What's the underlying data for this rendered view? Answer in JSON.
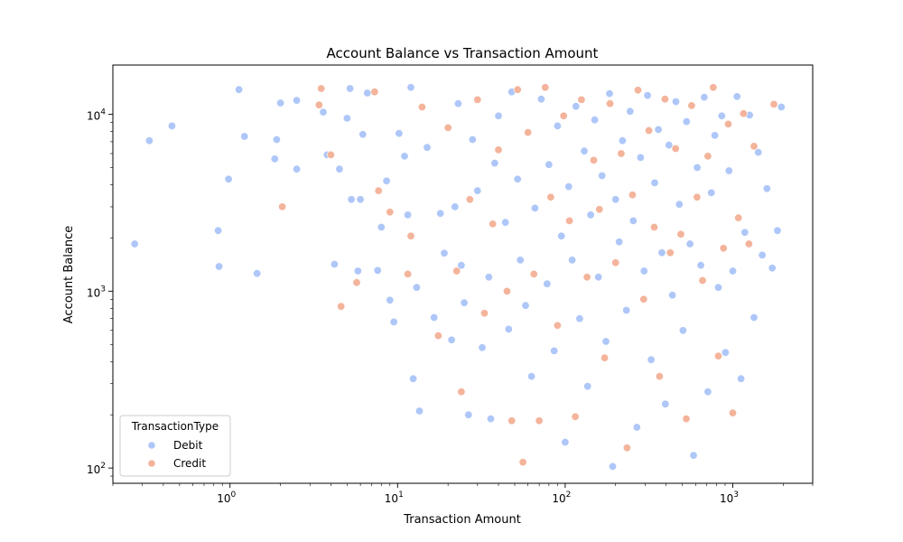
{
  "chart_data": {
    "type": "scatter",
    "title": "Account Balance vs Transaction Amount",
    "xlabel": "Transaction Amount",
    "ylabel": "Account Balance",
    "xscale": "log",
    "yscale": "log",
    "xlim": [
      0.2,
      3000
    ],
    "ylim": [
      82,
      19000
    ],
    "x_ticks": [
      {
        "value": 1,
        "base": "10",
        "exp": "0"
      },
      {
        "value": 10,
        "base": "10",
        "exp": "1"
      },
      {
        "value": 100,
        "base": "10",
        "exp": "2"
      },
      {
        "value": 1000,
        "base": "10",
        "exp": "3"
      }
    ],
    "y_ticks": [
      {
        "value": 100,
        "base": "10",
        "exp": "2"
      },
      {
        "value": 1000,
        "base": "10",
        "exp": "3"
      },
      {
        "value": 10000,
        "base": "10",
        "exp": "4"
      }
    ],
    "grid": false,
    "legend": {
      "title": "TransactionType",
      "placement": "lower-left"
    },
    "series": [
      {
        "name": "Debit",
        "color": "#aec7f8",
        "points": [
          [
            0.27,
            1850
          ],
          [
            0.33,
            7100
          ],
          [
            0.45,
            8600
          ],
          [
            0.85,
            2200
          ],
          [
            0.86,
            1380
          ],
          [
            0.98,
            4300
          ],
          [
            1.13,
            13800
          ],
          [
            1.22,
            7500
          ],
          [
            1.45,
            1260
          ],
          [
            1.85,
            5600
          ],
          [
            1.9,
            7200
          ],
          [
            2.0,
            11600
          ],
          [
            2.5,
            4900
          ],
          [
            2.5,
            12000
          ],
          [
            3.6,
            10300
          ],
          [
            3.8,
            5900
          ],
          [
            4.2,
            1420
          ],
          [
            4.5,
            4900
          ],
          [
            5.0,
            9500
          ],
          [
            5.2,
            14000
          ],
          [
            5.3,
            3300
          ],
          [
            5.8,
            1300
          ],
          [
            6.0,
            3300
          ],
          [
            6.2,
            7700
          ],
          [
            6.6,
            13200
          ],
          [
            7.6,
            1310
          ],
          [
            8.0,
            2300
          ],
          [
            8.6,
            4200
          ],
          [
            9.0,
            890
          ],
          [
            9.5,
            670
          ],
          [
            10.2,
            7800
          ],
          [
            11.0,
            5800
          ],
          [
            11.5,
            2700
          ],
          [
            12.0,
            14200
          ],
          [
            12.4,
            320
          ],
          [
            13.0,
            1050
          ],
          [
            13.5,
            210
          ],
          [
            15.0,
            6500
          ],
          [
            16.5,
            710
          ],
          [
            18.0,
            2750
          ],
          [
            19.0,
            1640
          ],
          [
            21.0,
            530
          ],
          [
            22.0,
            3000
          ],
          [
            23.0,
            11500
          ],
          [
            24.0,
            1400
          ],
          [
            25.0,
            860
          ],
          [
            26.5,
            200
          ],
          [
            28.0,
            7200
          ],
          [
            30.0,
            3700
          ],
          [
            32.0,
            480
          ],
          [
            35.0,
            1200
          ],
          [
            36.0,
            190
          ],
          [
            38.0,
            5300
          ],
          [
            40.0,
            9800
          ],
          [
            44.0,
            2450
          ],
          [
            46.0,
            610
          ],
          [
            48.0,
            13400
          ],
          [
            52.0,
            4300
          ],
          [
            54.0,
            1500
          ],
          [
            58.0,
            830
          ],
          [
            60.0,
            7900
          ],
          [
            63.0,
            330
          ],
          [
            66.0,
            2950
          ],
          [
            72.0,
            12200
          ],
          [
            78.0,
            1100
          ],
          [
            80.0,
            5200
          ],
          [
            86.0,
            460
          ],
          [
            90.0,
            8600
          ],
          [
            95.0,
            2050
          ],
          [
            100.0,
            140
          ],
          [
            105.0,
            3900
          ],
          [
            110.0,
            1500
          ],
          [
            116.0,
            11100
          ],
          [
            122.0,
            700
          ],
          [
            130.0,
            6200
          ],
          [
            136.0,
            290
          ],
          [
            142.0,
            2700
          ],
          [
            150.0,
            9300
          ],
          [
            158.0,
            1200
          ],
          [
            166.0,
            4500
          ],
          [
            175.0,
            520
          ],
          [
            184.0,
            13100
          ],
          [
            192.0,
            102
          ],
          [
            200.0,
            3300
          ],
          [
            210.0,
            1900
          ],
          [
            220.0,
            7100
          ],
          [
            232.0,
            780
          ],
          [
            244.0,
            10400
          ],
          [
            255.0,
            2500
          ],
          [
            268.0,
            170
          ],
          [
            282.0,
            5700
          ],
          [
            296.0,
            1300
          ],
          [
            310.0,
            12800
          ],
          [
            326.0,
            410
          ],
          [
            342.0,
            4100
          ],
          [
            360.0,
            8200
          ],
          [
            378.0,
            1650
          ],
          [
            396.0,
            230
          ],
          [
            416.0,
            6700
          ],
          [
            436.0,
            950
          ],
          [
            458.0,
            11800
          ],
          [
            480.0,
            3100
          ],
          [
            505.0,
            600
          ],
          [
            530.0,
            9100
          ],
          [
            556.0,
            1850
          ],
          [
            584.0,
            118
          ],
          [
            614.0,
            5000
          ],
          [
            645.0,
            1400
          ],
          [
            676.0,
            12500
          ],
          [
            710.0,
            270
          ],
          [
            745.0,
            3600
          ],
          [
            782.0,
            7600
          ],
          [
            820.0,
            1050
          ],
          [
            860.0,
            9800
          ],
          [
            905.0,
            450
          ],
          [
            950.0,
            4800
          ],
          [
            1000.0,
            1300
          ],
          [
            1060.0,
            12600
          ],
          [
            1120.0,
            320
          ],
          [
            1180.0,
            2150
          ],
          [
            1260.0,
            9900
          ],
          [
            1340.0,
            710
          ],
          [
            1420.0,
            6100
          ],
          [
            1500.0,
            1600
          ],
          [
            1600.0,
            3800
          ],
          [
            1720.0,
            1350
          ],
          [
            1850.0,
            2200
          ],
          [
            1950.0,
            11000
          ]
        ]
      },
      {
        "name": "Credit",
        "color": "#f4b49b",
        "points": [
          [
            2.05,
            3000
          ],
          [
            3.4,
            11300
          ],
          [
            3.5,
            14000
          ],
          [
            4.0,
            5900
          ],
          [
            4.6,
            820
          ],
          [
            5.7,
            1120
          ],
          [
            7.3,
            13400
          ],
          [
            7.7,
            3700
          ],
          [
            9.0,
            2800
          ],
          [
            11.5,
            1250
          ],
          [
            12.0,
            2050
          ],
          [
            14.0,
            11000
          ],
          [
            17.5,
            560
          ],
          [
            20.0,
            8400
          ],
          [
            22.5,
            1300
          ],
          [
            24.0,
            270
          ],
          [
            27.0,
            3300
          ],
          [
            30.0,
            12100
          ],
          [
            33.0,
            750
          ],
          [
            37.0,
            2400
          ],
          [
            40.0,
            6300
          ],
          [
            45.0,
            1000
          ],
          [
            48.0,
            185
          ],
          [
            52.0,
            13800
          ],
          [
            56.0,
            108
          ],
          [
            60.0,
            7900
          ],
          [
            65.0,
            1250
          ],
          [
            70.0,
            185
          ],
          [
            76.0,
            14200
          ],
          [
            82.0,
            3400
          ],
          [
            90.0,
            640
          ],
          [
            98.0,
            9800
          ],
          [
            106.0,
            2500
          ],
          [
            115.0,
            195
          ],
          [
            125.0,
            12100
          ],
          [
            135.0,
            1200
          ],
          [
            148.0,
            5500
          ],
          [
            160.0,
            2900
          ],
          [
            172.0,
            420
          ],
          [
            185.0,
            11500
          ],
          [
            200.0,
            1450
          ],
          [
            216.0,
            6000
          ],
          [
            234.0,
            130
          ],
          [
            252.0,
            3500
          ],
          [
            272.0,
            13700
          ],
          [
            294.0,
            900
          ],
          [
            316.0,
            8100
          ],
          [
            340.0,
            2300
          ],
          [
            366.0,
            330
          ],
          [
            394.0,
            12200
          ],
          [
            424.0,
            1650
          ],
          [
            456.0,
            6400
          ],
          [
            490.0,
            2100
          ],
          [
            528.0,
            190
          ],
          [
            568.0,
            11200
          ],
          [
            612.0,
            3400
          ],
          [
            660.0,
            1150
          ],
          [
            710.0,
            5800
          ],
          [
            765.0,
            14200
          ],
          [
            820.0,
            430
          ],
          [
            880.0,
            1750
          ],
          [
            940.0,
            8800
          ],
          [
            1000.0,
            205
          ],
          [
            1080.0,
            2600
          ],
          [
            1160.0,
            10100
          ],
          [
            1250.0,
            1850
          ],
          [
            1340.0,
            6600
          ],
          [
            1760.0,
            11400
          ]
        ]
      }
    ]
  }
}
